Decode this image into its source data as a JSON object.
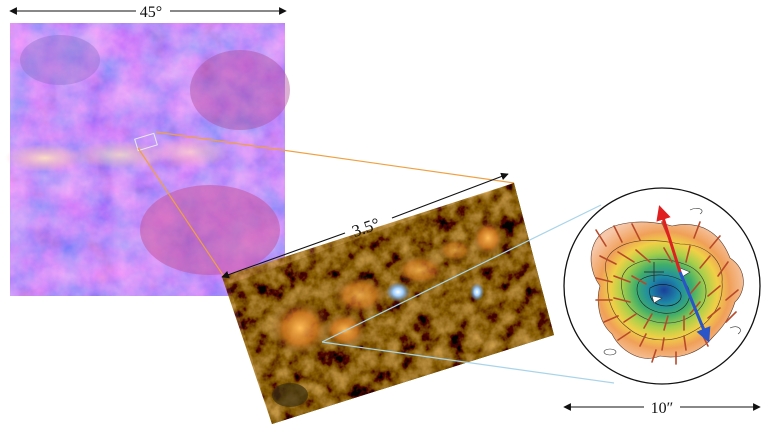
{
  "scale_labels": {
    "wide_view": "45°",
    "mid_view": "3.5°",
    "core_view": "10″"
  },
  "panels": [
    {
      "name": "wide-field-sky-map",
      "icon": "galactic-plane-image"
    },
    {
      "name": "cloud-complex-image",
      "icon": "infrared-filament-image"
    },
    {
      "name": "core-polarization-map",
      "icon": "contour-vector-map"
    }
  ],
  "colors": {
    "zoom_box_1": "#f0a040",
    "zoom_box_2": "#a8d4ea",
    "vector_red": "#e02020",
    "vector_blue": "#2a55c8",
    "polarization_segments": "#b84a2a"
  }
}
